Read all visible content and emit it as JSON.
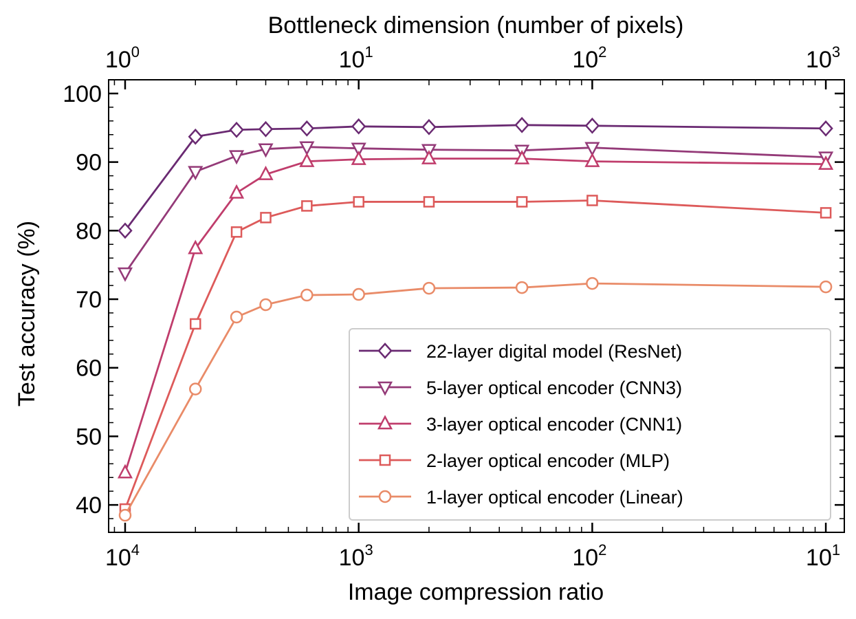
{
  "chart_data": {
    "type": "line",
    "xlabel": "Image compression ratio",
    "x2label": "Bottleneck dimension (number of pixels)",
    "ylabel": "Test accuracy (%)",
    "xscale": "log",
    "x_reversed": true,
    "xlim_pixels": [
      0.85,
      1200
    ],
    "ylim": [
      36,
      102
    ],
    "yticks": [
      40,
      50,
      60,
      70,
      80,
      90,
      100
    ],
    "ytick_labels": [
      "40",
      "50",
      "60",
      "70",
      "80",
      "90",
      "100"
    ],
    "xticks_bottom": [
      {
        "base": "10",
        "exp": "4",
        "pixels": 1
      },
      {
        "base": "10",
        "exp": "3",
        "pixels": 10
      },
      {
        "base": "10",
        "exp": "2",
        "pixels": 100
      },
      {
        "base": "10",
        "exp": "1",
        "pixels": 1000
      }
    ],
    "xticks_top": [
      {
        "base": "10",
        "exp": "0",
        "pixels": 1
      },
      {
        "base": "10",
        "exp": "1",
        "pixels": 10
      },
      {
        "base": "10",
        "exp": "2",
        "pixels": 100
      },
      {
        "base": "10",
        "exp": "3",
        "pixels": 1000
      }
    ],
    "grid": false,
    "legend_position": "lower-right",
    "x": [
      1,
      2,
      3,
      4,
      6,
      10,
      20,
      50,
      100,
      1000
    ],
    "series": [
      {
        "name": "22-layer digital model (ResNet)",
        "marker": "diamond",
        "color": "#6a2a72",
        "values": [
          80.0,
          93.7,
          94.7,
          94.8,
          94.9,
          95.2,
          95.1,
          95.4,
          95.3,
          94.9
        ]
      },
      {
        "name": "5-layer optical encoder (CNN3)",
        "marker": "triangle-down",
        "color": "#943a78",
        "values": [
          73.8,
          88.6,
          90.9,
          91.9,
          92.2,
          92.0,
          91.8,
          91.7,
          92.1,
          90.7
        ]
      },
      {
        "name": "3-layer optical encoder (CNN1)",
        "marker": "triangle-up",
        "color": "#c03d6c",
        "values": [
          44.7,
          77.4,
          85.5,
          88.2,
          90.1,
          90.4,
          90.5,
          90.5,
          90.1,
          89.7
        ]
      },
      {
        "name": "2-layer optical encoder (MLP)",
        "marker": "square",
        "color": "#dd5a5a",
        "values": [
          39.4,
          66.4,
          79.8,
          81.9,
          83.6,
          84.2,
          84.2,
          84.2,
          84.4,
          82.6
        ]
      },
      {
        "name": "1-layer optical encoder (Linear)",
        "marker": "circle",
        "color": "#e98b68",
        "values": [
          38.5,
          56.9,
          67.4,
          69.2,
          70.6,
          70.7,
          71.6,
          71.7,
          72.3,
          71.8
        ]
      }
    ]
  }
}
